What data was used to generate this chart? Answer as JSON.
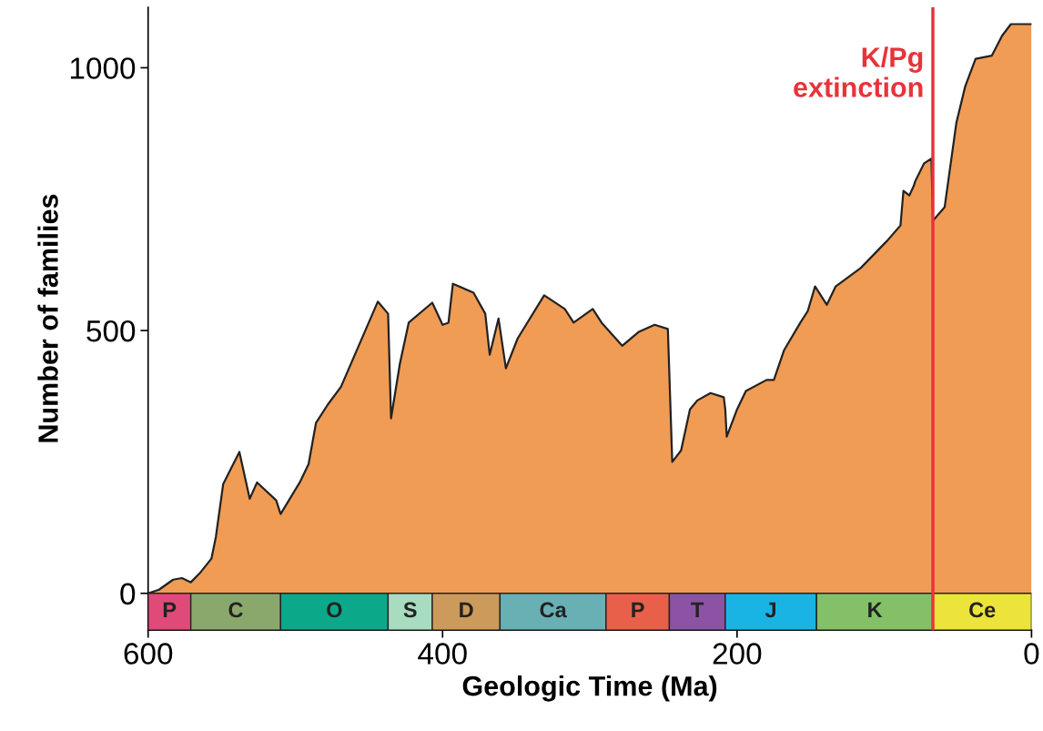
{
  "chart_data": {
    "type": "area",
    "xlabel": "Geologic Time (Ma)",
    "ylabel": "Number of families",
    "xlim": [
      600,
      0
    ],
    "xticks": [
      600,
      400,
      200,
      0
    ],
    "ylim": [
      -70,
      1115
    ],
    "yticks": [
      0,
      500,
      1000
    ],
    "grid": false,
    "legend": false,
    "series": [
      {
        "color": "#f09c55",
        "x": [
          600,
          592.6,
          583,
          577,
          571,
          565,
          557,
          554,
          549,
          538,
          531,
          526,
          513,
          510,
          497,
          491,
          486,
          478,
          469,
          444,
          437,
          435,
          429,
          423,
          407,
          400,
          396,
          393,
          379,
          371,
          368,
          362,
          357,
          349,
          331,
          317,
          311,
          298,
          292,
          278,
          267,
          256,
          247,
          244,
          238,
          232,
          227,
          218,
          209,
          208,
          207,
          200,
          194,
          180,
          175,
          168,
          157,
          152,
          147,
          139,
          133,
          116,
          98,
          89,
          87,
          83,
          80,
          79,
          73,
          68,
          67,
          59,
          51,
          45,
          38,
          27,
          20,
          14,
          0
        ],
        "values": [
          0,
          7,
          26,
          29,
          21,
          38,
          66,
          107,
          208,
          269,
          180,
          211,
          177,
          151,
          211,
          246,
          324,
          359,
          393,
          555,
          532,
          333,
          437,
          515,
          553,
          511,
          515,
          589,
          572,
          532,
          454,
          523,
          428,
          485,
          567,
          541,
          515,
          541,
          515,
          471,
          497,
          511,
          503,
          250,
          272,
          350,
          367,
          381,
          373,
          350,
          298,
          350,
          385,
          406,
          406,
          463,
          515,
          537,
          584,
          549,
          584,
          619,
          671,
          700,
          766,
          757,
          775,
          784,
          818,
          827,
          709,
          735,
          896,
          965,
          1017,
          1023,
          1061,
          1083,
          1083
        ]
      }
    ],
    "ref_lines": [
      {
        "axis": "x",
        "value": 67,
        "label": "K/Pg\nextinction",
        "color": "#e8333a"
      }
    ],
    "bands": [
      {
        "axis": "x",
        "from": 600,
        "to": 571,
        "label": "P",
        "color": "#e04a78"
      },
      {
        "axis": "x",
        "from": 571,
        "to": 510,
        "label": "C",
        "color": "#8aa86c"
      },
      {
        "axis": "x",
        "from": 510,
        "to": 437,
        "label": "O",
        "color": "#0ca88a"
      },
      {
        "axis": "x",
        "from": 437,
        "to": 407,
        "label": "S",
        "color": "#a8dcc0"
      },
      {
        "axis": "x",
        "from": 407,
        "to": 361,
        "label": "D",
        "color": "#cc9a5a"
      },
      {
        "axis": "x",
        "from": 361,
        "to": 289,
        "label": "Ca",
        "color": "#68b0b4"
      },
      {
        "axis": "x",
        "from": 289,
        "to": 246,
        "label": "P",
        "color": "#e8604a"
      },
      {
        "axis": "x",
        "from": 246,
        "to": 208,
        "label": "T",
        "color": "#8c52a4"
      },
      {
        "axis": "x",
        "from": 208,
        "to": 146,
        "label": "J",
        "color": "#1ab4e4"
      },
      {
        "axis": "x",
        "from": 146,
        "to": 67,
        "label": "K",
        "color": "#84c068"
      },
      {
        "axis": "x",
        "from": 67,
        "to": 0,
        "label": "Ce",
        "color": "#ece43a"
      }
    ]
  }
}
